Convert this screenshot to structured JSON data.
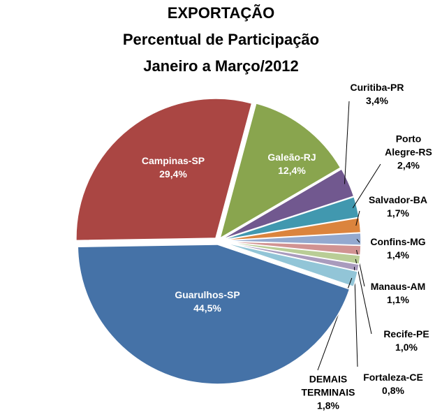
{
  "chart_data": {
    "type": "pie",
    "title": [
      "EXPORTAÇÃO",
      "Percentual de Participação",
      "Janeiro a Março/2012"
    ],
    "categories": [
      "Galeão-RJ",
      "Curitiba-PR",
      "Porto Alegre-RS",
      "Salvador-BA",
      "Confins-MG",
      "Manaus-AM",
      "Recife-PE",
      "Fortaleza-CE",
      "DEMAIS TERMINAIS",
      "Guarulhos-SP",
      "Campinas-SP"
    ],
    "values": [
      12.4,
      3.4,
      2.4,
      1.7,
      1.4,
      1.1,
      1.0,
      0.8,
      1.8,
      44.5,
      29.4
    ],
    "value_labels": [
      "12,4%",
      "3,4%",
      "2,4%",
      "1,7%",
      "1,4%",
      "1,1%",
      "1,0%",
      "0,8%",
      "1,8%",
      "44,5%",
      "29,4%"
    ],
    "colors": [
      "#89A54E",
      "#71588F",
      "#4198AF",
      "#DB843D",
      "#93A9CF",
      "#D19392",
      "#B9CD96",
      "#A99BBD",
      "#92C5D7",
      "#4572A7",
      "#AA4643"
    ]
  }
}
